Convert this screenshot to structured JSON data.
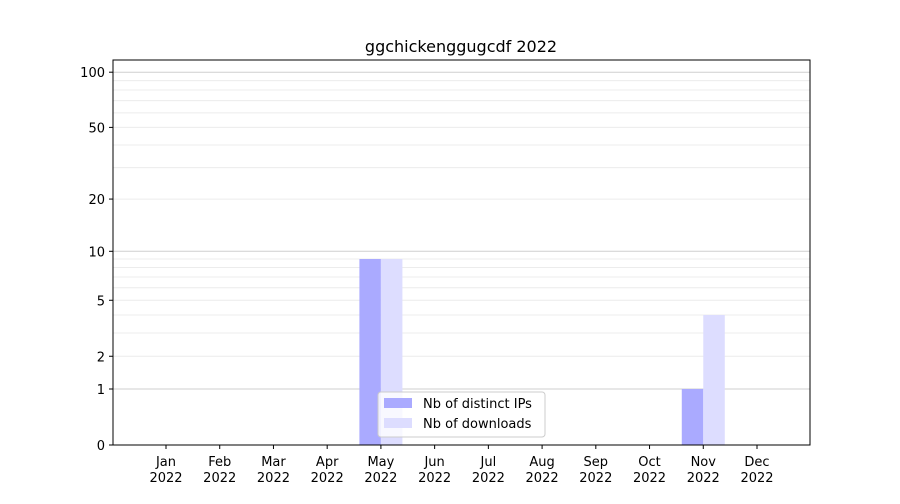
{
  "chart_data": {
    "type": "bar",
    "title": "ggchickenggugcdf 2022",
    "xlabel": "",
    "ylabel": "",
    "yscale": "symlog",
    "ylim": [
      0,
      116
    ],
    "yticks": [
      0,
      1,
      2,
      5,
      10,
      20,
      50,
      100
    ],
    "categories": [
      "Jan\n2022",
      "Feb\n2022",
      "Mar\n2022",
      "Apr\n2022",
      "May\n2022",
      "Jun\n2022",
      "Jul\n2022",
      "Aug\n2022",
      "Sep\n2022",
      "Oct\n2022",
      "Nov\n2022",
      "Dec\n2022"
    ],
    "series": [
      {
        "name": "Nb of distinct IPs",
        "color": "#aaaaff",
        "values": [
          0,
          0,
          0,
          0,
          9,
          0,
          0,
          0,
          0,
          0,
          1,
          0
        ]
      },
      {
        "name": "Nb of downloads",
        "color": "#ddddff",
        "values": [
          0,
          0,
          0,
          0,
          9,
          0,
          0,
          0,
          0,
          0,
          4,
          0
        ]
      }
    ],
    "grid": true,
    "legend": "bottom-center"
  }
}
